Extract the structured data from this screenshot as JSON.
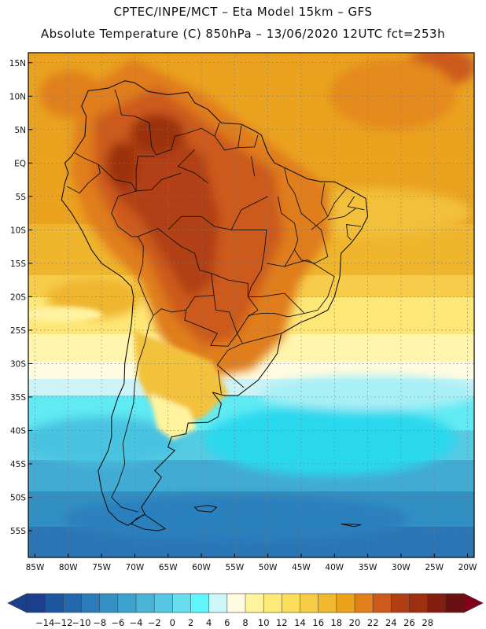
{
  "header": {
    "line1": "CPTEC/INPE/MCT –  Eta Model 15km – GFS",
    "line2": "Absolute Temperature (C) 850hPa – 13/06/2020 12UTC fct=253h"
  },
  "map": {
    "lon_range": [
      -86,
      -19
    ],
    "lat_range": [
      -59,
      16.5
    ],
    "lat_ticks": [
      {
        "value": 15,
        "label": "15N"
      },
      {
        "value": 10,
        "label": "10N"
      },
      {
        "value": 5,
        "label": "5N"
      },
      {
        "value": 0,
        "label": "EQ"
      },
      {
        "value": -5,
        "label": "5S"
      },
      {
        "value": -10,
        "label": "10S"
      },
      {
        "value": -15,
        "label": "15S"
      },
      {
        "value": -20,
        "label": "20S"
      },
      {
        "value": -25,
        "label": "25S"
      },
      {
        "value": -30,
        "label": "30S"
      },
      {
        "value": -35,
        "label": "35S"
      },
      {
        "value": -40,
        "label": "40S"
      },
      {
        "value": -45,
        "label": "45S"
      },
      {
        "value": -50,
        "label": "50S"
      },
      {
        "value": -55,
        "label": "55S"
      }
    ],
    "lon_ticks": [
      {
        "value": -85,
        "label": "85W"
      },
      {
        "value": -80,
        "label": "80W"
      },
      {
        "value": -75,
        "label": "75W"
      },
      {
        "value": -70,
        "label": "70W"
      },
      {
        "value": -65,
        "label": "65W"
      },
      {
        "value": -60,
        "label": "60W"
      },
      {
        "value": -55,
        "label": "55W"
      },
      {
        "value": -50,
        "label": "50W"
      },
      {
        "value": -45,
        "label": "45W"
      },
      {
        "value": -40,
        "label": "40W"
      },
      {
        "value": -35,
        "label": "35W"
      },
      {
        "value": -30,
        "label": "30W"
      },
      {
        "value": -25,
        "label": "25W"
      },
      {
        "value": -20,
        "label": "20W"
      }
    ],
    "coastline": [
      [
        -78,
        8.5
      ],
      [
        -77,
        10.8
      ],
      [
        -74,
        11.2
      ],
      [
        -71.5,
        12.3
      ],
      [
        -70,
        12
      ],
      [
        -68,
        10.7
      ],
      [
        -65,
        10.2
      ],
      [
        -62,
        10.6
      ],
      [
        -61,
        9
      ],
      [
        -59,
        8
      ],
      [
        -57,
        6
      ],
      [
        -54,
        5.8
      ],
      [
        -52,
        4.8
      ],
      [
        -51,
        4.2
      ],
      [
        -50,
        1.5
      ],
      [
        -49,
        0
      ],
      [
        -47.5,
        -0.7
      ],
      [
        -44,
        -2.4
      ],
      [
        -42,
        -2.8
      ],
      [
        -40,
        -2.8
      ],
      [
        -38,
        -3.8
      ],
      [
        -35.3,
        -5.3
      ],
      [
        -35,
        -8
      ],
      [
        -36,
        -10
      ],
      [
        -37.5,
        -12
      ],
      [
        -39,
        -13.5
      ],
      [
        -39.2,
        -17
      ],
      [
        -40,
        -20
      ],
      [
        -41,
        -22
      ],
      [
        -43,
        -23
      ],
      [
        -45,
        -23.8
      ],
      [
        -48,
        -25.5
      ],
      [
        -48.6,
        -28.5
      ],
      [
        -50,
        -30.5
      ],
      [
        -51.5,
        -32.5
      ],
      [
        -53.2,
        -33.8
      ],
      [
        -54.5,
        -34.8
      ],
      [
        -56.5,
        -34.8
      ],
      [
        -58.3,
        -34.3
      ],
      [
        -57,
        -36
      ],
      [
        -57.5,
        -38
      ],
      [
        -59,
        -38.8
      ],
      [
        -62,
        -38.9
      ],
      [
        -62.3,
        -40.5
      ],
      [
        -64.5,
        -41
      ],
      [
        -65,
        -42.5
      ],
      [
        -64,
        -43
      ],
      [
        -65.5,
        -44.5
      ],
      [
        -67,
        -46
      ],
      [
        -66,
        -47
      ],
      [
        -68,
        -50
      ],
      [
        -69,
        -51.5
      ],
      [
        -68.5,
        -52.5
      ],
      [
        -70,
        -53.5
      ],
      [
        -71,
        -54.2
      ],
      [
        -72.5,
        -53.5
      ],
      [
        -74,
        -52
      ],
      [
        -75,
        -49
      ],
      [
        -75.5,
        -46
      ],
      [
        -74,
        -43
      ],
      [
        -73.5,
        -41
      ],
      [
        -73.5,
        -38
      ],
      [
        -72.5,
        -35
      ],
      [
        -71.6,
        -33
      ],
      [
        -71.5,
        -30
      ],
      [
        -71,
        -27
      ],
      [
        -70.5,
        -24
      ],
      [
        -70.2,
        -20
      ],
      [
        -70.5,
        -18.5
      ],
      [
        -72,
        -17
      ],
      [
        -75,
        -15
      ],
      [
        -76.5,
        -13
      ],
      [
        -78,
        -10
      ],
      [
        -79.5,
        -7.5
      ],
      [
        -81,
        -5.5
      ],
      [
        -80.5,
        -3
      ],
      [
        -80,
        -1.5
      ],
      [
        -80.5,
        0
      ],
      [
        -79.5,
        1
      ],
      [
        -78.5,
        2.5
      ],
      [
        -77.5,
        4
      ],
      [
        -77.3,
        7
      ],
      [
        -78,
        8.5
      ]
    ],
    "borders": [
      [
        [
          -60,
          5.2
        ],
        [
          -62,
          4.5
        ],
        [
          -64,
          4
        ],
        [
          -64.5,
          2
        ],
        [
          -66.8,
          1.2
        ],
        [
          -67.5,
          2.5
        ],
        [
          -67.8,
          6
        ],
        [
          -70,
          7
        ],
        [
          -72,
          7.2
        ],
        [
          -72.5,
          9.5
        ],
        [
          -73,
          11
        ]
      ],
      [
        [
          -67,
          1
        ],
        [
          -69.5,
          1
        ],
        [
          -69.8,
          -1
        ],
        [
          -69.8,
          -4.2
        ],
        [
          -72.5,
          -5
        ],
        [
          -73.5,
          -7.5
        ],
        [
          -72.5,
          -9.5
        ],
        [
          -70.5,
          -11
        ],
        [
          -69.5,
          -11
        ],
        [
          -68.7,
          -12.5
        ],
        [
          -68.8,
          -15
        ],
        [
          -69.5,
          -17.5
        ],
        [
          -68.5,
          -20
        ],
        [
          -67.2,
          -22.8
        ],
        [
          -67.8,
          -24
        ],
        [
          -68.5,
          -27
        ],
        [
          -69.5,
          -30
        ],
        [
          -70,
          -33
        ],
        [
          -70.2,
          -36
        ],
        [
          -71,
          -39
        ],
        [
          -71.8,
          -42
        ],
        [
          -71.5,
          -45
        ],
        [
          -72.5,
          -48
        ],
        [
          -73.5,
          -50
        ],
        [
          -72,
          -51.5
        ],
        [
          -69.5,
          -52.2
        ]
      ],
      [
        [
          -69.5,
          -11
        ],
        [
          -66.5,
          -9.8
        ],
        [
          -65,
          -11
        ],
        [
          -63,
          -12.5
        ],
        [
          -61,
          -13.5
        ],
        [
          -60.3,
          -16
        ],
        [
          -58.5,
          -16.5
        ],
        [
          -58.1,
          -19.8
        ],
        [
          -57.8,
          -22
        ],
        [
          -55.8,
          -22.3
        ],
        [
          -54.6,
          -25.5
        ],
        [
          -53.8,
          -27
        ],
        [
          -56,
          -28
        ],
        [
          -57.6,
          -30.2
        ],
        [
          -53.6,
          -33.6
        ]
      ],
      [
        [
          -58.1,
          -19.8
        ],
        [
          -61,
          -20
        ],
        [
          -62.3,
          -22
        ],
        [
          -62.5,
          -23.5
        ],
        [
          -60,
          -24.5
        ],
        [
          -57.6,
          -25.5
        ],
        [
          -58.6,
          -27.3
        ],
        [
          -56,
          -27.4
        ],
        [
          -54.6,
          -25.5
        ]
      ],
      [
        [
          -62.3,
          -22
        ],
        [
          -64.5,
          -22.3
        ],
        [
          -66,
          -21.8
        ],
        [
          -67.2,
          -22.8
        ]
      ],
      [
        [
          -75.5,
          -0.2
        ],
        [
          -77.8,
          0.8
        ],
        [
          -79,
          1.5
        ]
      ],
      [
        [
          -75.5,
          -0.2
        ],
        [
          -75.2,
          -1.5
        ],
        [
          -77,
          -3
        ],
        [
          -78.3,
          -4.5
        ],
        [
          -80.2,
          -3.5
        ]
      ],
      [
        [
          -69.8,
          -4.2
        ],
        [
          -70.5,
          -3
        ],
        [
          -73,
          -2.5
        ],
        [
          -75.5,
          -0.2
        ]
      ],
      [
        [
          -60,
          5.2
        ],
        [
          -58,
          4
        ],
        [
          -56.5,
          1.9
        ],
        [
          -54.5,
          2.3
        ],
        [
          -52,
          2.4
        ],
        [
          -51.5,
          4.2
        ]
      ],
      [
        [
          -58,
          4
        ],
        [
          -57.3,
          6
        ]
      ],
      [
        [
          -54.5,
          2.3
        ],
        [
          -54,
          5.6
        ]
      ],
      [
        [
          -55.5,
          -10
        ],
        [
          -50.2,
          -10
        ],
        [
          -50.5,
          -13
        ],
        [
          -51,
          -16
        ],
        [
          -52.5,
          -18.5
        ],
        [
          -53,
          -20
        ],
        [
          -51,
          -20
        ],
        [
          -47.5,
          -19.5
        ]
      ],
      [
        [
          -58.5,
          -16.5
        ],
        [
          -56,
          -17.5
        ],
        [
          -53,
          -18
        ],
        [
          -53,
          -20
        ],
        [
          -51.5,
          -22
        ],
        [
          -53,
          -23
        ],
        [
          -54.6,
          -25.5
        ]
      ],
      [
        [
          -60,
          -8
        ],
        [
          -58,
          -9.5
        ],
        [
          -55.5,
          -10
        ],
        [
          -54,
          -7
        ],
        [
          -52,
          -6
        ],
        [
          -50,
          -5
        ]
      ],
      [
        [
          -48.5,
          -5
        ],
        [
          -48,
          -7.5
        ],
        [
          -46,
          -9
        ],
        [
          -45.5,
          -11.5
        ],
        [
          -46,
          -13
        ],
        [
          -47.5,
          -15.5
        ],
        [
          -50.2,
          -15
        ]
      ],
      [
        [
          -45,
          -7.5
        ],
        [
          -42,
          -10
        ],
        [
          -41,
          -14
        ],
        [
          -43,
          -15
        ],
        [
          -45,
          -14.5
        ],
        [
          -46,
          -13
        ]
      ],
      [
        [
          -47.5,
          -15.5
        ],
        [
          -46,
          -15
        ],
        [
          -44,
          -14.5
        ],
        [
          -40,
          -17
        ],
        [
          -41,
          -20
        ],
        [
          -42.5,
          -22
        ],
        [
          -44.5,
          -22.5
        ],
        [
          -47.5,
          -19.5
        ]
      ],
      [
        [
          -44.5,
          -22.5
        ],
        [
          -47,
          -23
        ],
        [
          -49,
          -22.5
        ],
        [
          -51,
          -22.5
        ],
        [
          -53,
          -22.8
        ]
      ],
      [
        [
          -48,
          -25.5
        ],
        [
          -50,
          -26
        ],
        [
          -53.8,
          -27
        ]
      ],
      [
        [
          -41.5,
          -3
        ],
        [
          -42,
          -6
        ],
        [
          -41,
          -8
        ],
        [
          -43.5,
          -10
        ]
      ],
      [
        [
          -38.2,
          -3.8
        ],
        [
          -40,
          -6
        ],
        [
          -41,
          -8
        ]
      ],
      [
        [
          -37,
          -5
        ],
        [
          -38,
          -6.5
        ],
        [
          -35.5,
          -7
        ]
      ],
      [
        [
          -36.8,
          -6.8
        ],
        [
          -38.5,
          -8
        ],
        [
          -41,
          -8.5
        ]
      ],
      [
        [
          -36,
          -9.5
        ],
        [
          -38.2,
          -9.2
        ],
        [
          -38,
          -11
        ],
        [
          -37.5,
          -11.5
        ]
      ],
      [
        [
          -63,
          -1.5
        ],
        [
          -66,
          -2.5
        ],
        [
          -67.5,
          -4
        ],
        [
          -70,
          -4.2
        ]
      ],
      [
        [
          -61,
          2
        ],
        [
          -63.5,
          -0.5
        ],
        [
          -61,
          -1.5
        ],
        [
          -59,
          -3
        ]
      ],
      [
        [
          -52,
          -2
        ],
        [
          -52.5,
          1
        ]
      ],
      [
        [
          -47.5,
          -0.8
        ],
        [
          -47,
          -3
        ],
        [
          -46,
          -4.5
        ],
        [
          -45,
          -7.5
        ]
      ],
      [
        [
          -60,
          -8
        ],
        [
          -63,
          -8
        ],
        [
          -65,
          -10
        ]
      ],
      [
        [
          -57,
          -34.5
        ],
        [
          -57.5,
          -31
        ]
      ]
    ],
    "islands": [
      [
        [
          -61,
          -51.5
        ],
        [
          -59,
          -51.2
        ],
        [
          -57.7,
          -51.5
        ],
        [
          -58.5,
          -52.2
        ],
        [
          -60.5,
          -52
        ]
      ],
      [
        [
          -68.5,
          -52.6
        ],
        [
          -65.4,
          -54.7
        ],
        [
          -66.5,
          -55
        ],
        [
          -68.5,
          -54.8
        ],
        [
          -70.5,
          -54
        ],
        [
          -69.8,
          -53.2
        ]
      ],
      [
        [
          -39,
          -54
        ],
        [
          -36,
          -54.1
        ],
        [
          -37,
          -54.4
        ]
      ]
    ]
  },
  "colorbar": {
    "labels": [
      "-14",
      "-12",
      "-10",
      "-8",
      "-6",
      "-4",
      "-2",
      "0",
      "2",
      "4",
      "6",
      "8",
      "10",
      "12",
      "14",
      "16",
      "18",
      "20",
      "22",
      "24",
      "26",
      "28"
    ],
    "colors": [
      "#1c3f8c",
      "#1f56a0",
      "#2668ae",
      "#2d7cba",
      "#3690c4",
      "#3ea3cc",
      "#4ab4d7",
      "#55c7e2",
      "#67ddee",
      "#5ff5fa",
      "#cdf6f8",
      "#fffbe0",
      "#fff39e",
      "#feea78",
      "#fbdd5c",
      "#f6cc47",
      "#f0b82e",
      "#eba21c",
      "#e0801a",
      "#cc5a1b",
      "#b13f14",
      "#9c3011",
      "#831d10",
      "#6b1010"
    ],
    "end_left": "#1c3f8c",
    "end_right": "#810017"
  }
}
